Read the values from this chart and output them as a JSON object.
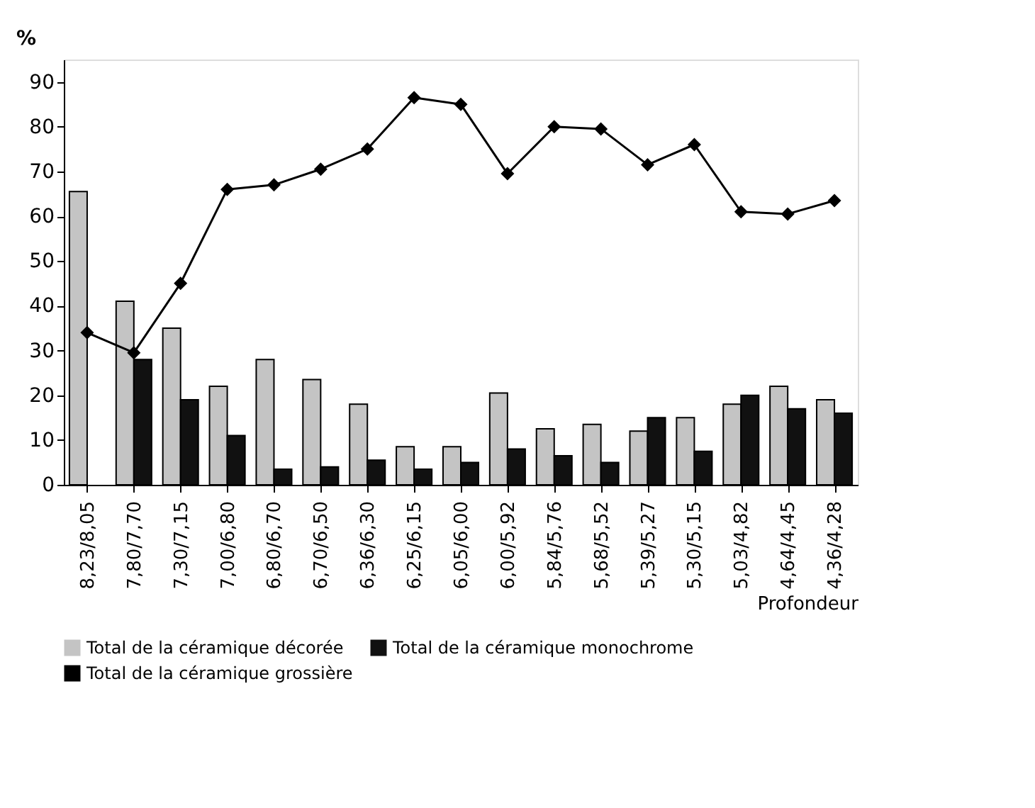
{
  "chart_data": {
    "type": "bar",
    "ylabel": "%",
    "xlabel": "Profondeur",
    "categories": [
      "8,23/8,05",
      "7,80/7,70",
      "7,30/7,15",
      "7,00/6,80",
      "6,80/6,70",
      "6,70/6,50",
      "6,36/6,30",
      "6,25/6,15",
      "6,05/6,00",
      "6,00/5,92",
      "5,84/5,76",
      "5,68/5,52",
      "5,39/5,27",
      "5,30/5,15",
      "5,03/4,82",
      "4,64/4,45",
      "4,36/4,28"
    ],
    "series": [
      {
        "name": "Total de la céramique décorée",
        "color": "#c4c4c4",
        "values": [
          65.5,
          41,
          35,
          22,
          28,
          23.5,
          18,
          8.5,
          8.5,
          20.5,
          12.5,
          13.5,
          12,
          15,
          18,
          22,
          19
        ]
      },
      {
        "name": "Total de la céramique monochrome",
        "color": "#111111",
        "values": [
          null,
          28,
          19,
          11,
          3.5,
          4,
          5.5,
          3.5,
          5,
          8,
          6.5,
          5,
          15,
          7.5,
          20,
          17,
          16
        ]
      },
      {
        "name": "Total de la céramique grossière",
        "type": "line",
        "color": "#000000",
        "marker": "diamond",
        "values": [
          34,
          29.5,
          45,
          66,
          67,
          70.5,
          75,
          86.5,
          85,
          69.5,
          80,
          79.5,
          71.5,
          76,
          61,
          60.5,
          63.5
        ]
      }
    ],
    "ylim": [
      0,
      95
    ],
    "yticks": [
      0,
      10,
      20,
      30,
      40,
      50,
      60,
      70,
      80,
      90
    ],
    "grid": false,
    "legend": "bottom"
  }
}
